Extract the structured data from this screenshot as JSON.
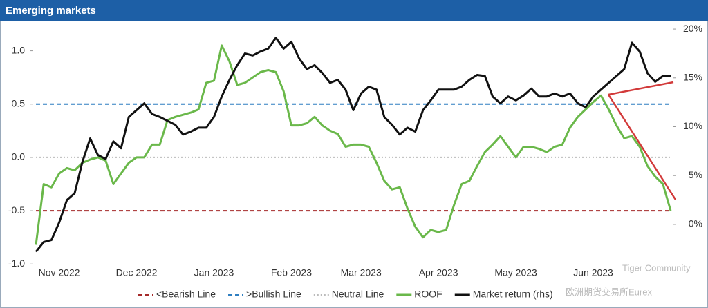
{
  "chart_data": {
    "type": "line",
    "title": "Emerging markets",
    "categories": [
      null,
      null,
      null,
      "Nov 2022",
      null,
      null,
      null,
      null,
      null,
      null,
      null,
      null,
      null,
      "Dec 2022",
      null,
      null,
      null,
      null,
      null,
      null,
      null,
      null,
      null,
      "Jan 2023",
      null,
      null,
      null,
      null,
      null,
      null,
      null,
      null,
      null,
      "Feb 2023",
      null,
      null,
      null,
      null,
      null,
      null,
      null,
      null,
      "Mar 2023",
      null,
      null,
      null,
      null,
      null,
      null,
      null,
      null,
      null,
      "Apr 2023",
      null,
      null,
      null,
      null,
      null,
      null,
      null,
      null,
      null,
      "May 2023",
      null,
      null,
      null,
      null,
      null,
      null,
      null,
      null,
      null,
      "Jun 2023",
      null,
      null,
      null,
      null,
      null,
      null,
      null,
      null,
      null,
      null
    ],
    "series": [
      {
        "name": "ROOF",
        "color": "#6ab84a",
        "axis": "y",
        "values": [
          -0.82,
          -0.25,
          -0.28,
          -0.15,
          -0.1,
          -0.12,
          -0.05,
          -0.02,
          0.0,
          -0.03,
          -0.25,
          -0.15,
          -0.05,
          0.0,
          0.0,
          0.12,
          0.12,
          0.35,
          0.38,
          0.4,
          0.42,
          0.45,
          0.7,
          0.72,
          1.05,
          0.9,
          0.68,
          0.7,
          0.75,
          0.8,
          0.82,
          0.8,
          0.62,
          0.3,
          0.3,
          0.32,
          0.38,
          0.3,
          0.25,
          0.22,
          0.1,
          0.12,
          0.12,
          0.1,
          -0.05,
          -0.22,
          -0.3,
          -0.28,
          -0.48,
          -0.65,
          -0.75,
          -0.68,
          -0.7,
          -0.68,
          -0.45,
          -0.25,
          -0.22,
          -0.08,
          0.05,
          0.12,
          0.2,
          0.1,
          0.0,
          0.1,
          0.1,
          0.08,
          0.05,
          0.1,
          0.12,
          0.28,
          0.38,
          0.45,
          0.52,
          0.58,
          0.45,
          0.3,
          0.18,
          0.2,
          0.1,
          -0.08,
          -0.18,
          -0.25,
          -0.5
        ]
      },
      {
        "name": "Market return (rhs)",
        "color": "#111111",
        "axis": "y2",
        "values": [
          -2.8,
          -1.8,
          -1.6,
          0.2,
          2.5,
          3.2,
          6.4,
          8.8,
          7.1,
          6.7,
          8.5,
          7.8,
          11.0,
          11.7,
          12.4,
          11.3,
          11.0,
          10.6,
          10.2,
          9.2,
          9.5,
          9.9,
          9.9,
          11.0,
          13.1,
          14.8,
          16.3,
          17.5,
          17.3,
          17.7,
          18.0,
          19.1,
          18.0,
          18.7,
          17.0,
          15.9,
          16.3,
          15.5,
          14.5,
          14.8,
          13.8,
          11.7,
          13.4,
          14.1,
          13.8,
          11.0,
          10.2,
          9.2,
          9.9,
          9.5,
          11.7,
          12.7,
          13.8,
          13.8,
          13.8,
          14.1,
          14.8,
          15.3,
          15.2,
          13.1,
          12.4,
          13.1,
          12.7,
          13.2,
          13.9,
          13.1,
          13.1,
          13.4,
          13.1,
          13.4,
          12.4,
          12.0,
          13.1,
          13.8,
          14.5,
          15.2,
          15.9,
          18.6,
          17.7,
          15.5,
          14.6,
          15.2,
          15.2
        ]
      }
    ],
    "hlines": [
      {
        "name": "<Bearish Line",
        "value": -0.5,
        "color": "#a52a2a",
        "dash": "6,4"
      },
      {
        "name": ">Bullish Line",
        "value": 0.5,
        "color": "#2f7fc1",
        "dash": "6,4"
      },
      {
        "name": "Neutral Line",
        "value": 0.0,
        "color": "#bbbbbb",
        "dash": "2,3"
      }
    ],
    "ylim": [
      -1.05,
      1.25
    ],
    "yticks": [
      {
        "value": -1,
        "label": "-1.0"
      },
      -0.5,
      {
        "value": 0,
        "label": "0.0"
      },
      0.5,
      {
        "value": 1,
        "label": "1.0"
      }
    ],
    "y2lim": [
      -4.6,
      20.5
    ],
    "y2ticks": [
      {
        "value": 0,
        "label": "0%"
      },
      {
        "value": 5,
        "label": "5%"
      },
      {
        "value": 10,
        "label": "10%"
      },
      {
        "value": 15,
        "label": "15%"
      },
      {
        "value": 20,
        "label": "20%"
      }
    ],
    "watermarks": [
      "Tiger Community",
      "欧洲期货交易所Eurex"
    ]
  }
}
